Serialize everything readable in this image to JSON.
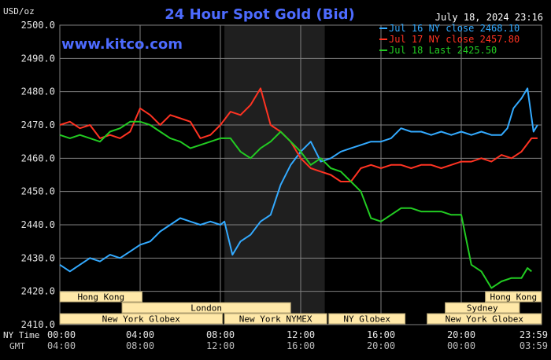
{
  "header": {
    "unit": "USD/oz",
    "title": "24 Hour Spot Gold (Bid)",
    "timestamp": "July 18, 2024 23:16",
    "watermark": "www.kitco.com"
  },
  "colors": {
    "background": "#000000",
    "grid": "#808080",
    "title": "#4d6bff",
    "watermark": "#4d6bff",
    "session_fill": "#ffe8a8",
    "session_border": "#b0a070",
    "highlight_band": "#1f1f1f"
  },
  "chart_data": {
    "type": "line",
    "title": "24 Hour Spot Gold (Bid)",
    "ylabel": "USD/oz",
    "ylim": [
      2410,
      2500
    ],
    "xlim": [
      0,
      24
    ],
    "grid": true,
    "legend": "top-right",
    "y_ticks": [
      "2500.0",
      "2490.0",
      "2480.0",
      "2470.0",
      "2460.0",
      "2450.0",
      "2440.0",
      "2430.0",
      "2420.0",
      "2410.0"
    ],
    "x_tick_labels": [
      "00:00",
      "04:00",
      "08:00",
      "12:00",
      "16:00",
      "20:00",
      "23:59"
    ],
    "gmt_tick_labels": [
      "04:00",
      "08:00",
      "12:00",
      "16:00",
      "20:00",
      "00:00",
      "03:59"
    ],
    "x_axis_labels": [
      "NY Time",
      "GMT"
    ],
    "highlight_range": [
      8.2,
      13.2
    ],
    "series": [
      {
        "name": "Jul 16 NY close 2468.10",
        "color": "#33aaff",
        "x": [
          0,
          0.5,
          1,
          1.5,
          2,
          2.5,
          3,
          3.5,
          4,
          4.5,
          5,
          5.5,
          6,
          6.5,
          7,
          7.5,
          8,
          8.2,
          8.6,
          9,
          9.5,
          10,
          10.5,
          11,
          11.5,
          12,
          12.5,
          13,
          13.5,
          14,
          14.5,
          15,
          15.5,
          16,
          16.5,
          17,
          17.5,
          18,
          18.5,
          19,
          19.5,
          20,
          20.5,
          21,
          21.5,
          22,
          22.3,
          22.6,
          23,
          23.3,
          23.6,
          23.8
        ],
        "y": [
          2428,
          2426,
          2428,
          2430,
          2429,
          2431,
          2430,
          2432,
          2434,
          2435,
          2438,
          2440,
          2442,
          2441,
          2440,
          2441,
          2440,
          2441,
          2431,
          2435,
          2437,
          2441,
          2443,
          2452,
          2458,
          2462,
          2465,
          2459,
          2460,
          2462,
          2463,
          2464,
          2465,
          2465,
          2466,
          2469,
          2468,
          2468,
          2467,
          2468,
          2467,
          2468,
          2467,
          2468,
          2467,
          2467,
          2469,
          2475,
          2478,
          2481,
          2468,
          2470
        ]
      },
      {
        "name": "Jul 17 NY close 2457.80",
        "color": "#ff3322",
        "x": [
          0,
          0.5,
          1,
          1.5,
          2,
          2.5,
          3,
          3.5,
          4,
          4.5,
          5,
          5.5,
          6,
          6.5,
          7,
          7.5,
          8,
          8.5,
          9,
          9.5,
          10,
          10.5,
          11,
          11.5,
          12,
          12.5,
          13,
          13.5,
          14,
          14.5,
          15,
          15.5,
          16,
          16.5,
          17,
          17.5,
          18,
          18.5,
          19,
          19.5,
          20,
          20.5,
          21,
          21.5,
          22,
          22.5,
          23,
          23.5,
          23.8
        ],
        "y": [
          2470,
          2471,
          2469,
          2470,
          2466,
          2467,
          2466,
          2468,
          2475,
          2473,
          2470,
          2473,
          2472,
          2471,
          2466,
          2467,
          2470,
          2474,
          2473,
          2476,
          2481,
          2470,
          2468,
          2465,
          2460,
          2457,
          2456,
          2455,
          2453,
          2453,
          2457,
          2458,
          2457,
          2458,
          2458,
          2457,
          2458,
          2458,
          2457,
          2458,
          2459,
          2459,
          2460,
          2459,
          2461,
          2460,
          2462,
          2466,
          2466
        ]
      },
      {
        "name": "Jul 18 Last 2425.50",
        "color": "#22cc22",
        "x": [
          0,
          0.5,
          1,
          1.5,
          2,
          2.5,
          3,
          3.5,
          4,
          4.5,
          5,
          5.5,
          6,
          6.5,
          7,
          7.5,
          8,
          8.5,
          9,
          9.5,
          10,
          10.5,
          11,
          11.5,
          12,
          12.5,
          13,
          13.5,
          14,
          14.5,
          15,
          15.5,
          16,
          16.5,
          17,
          17.5,
          18,
          18.5,
          19,
          19.5,
          20,
          20.5,
          21,
          21.5,
          22,
          22.5,
          23,
          23.3,
          23.5
        ],
        "y": [
          2467,
          2466,
          2467,
          2466,
          2465,
          2468,
          2469,
          2471,
          2471,
          2470,
          2468,
          2466,
          2465,
          2463,
          2464,
          2465,
          2466,
          2466,
          2462,
          2460,
          2463,
          2465,
          2468,
          2465,
          2462,
          2458,
          2460,
          2457,
          2456,
          2453,
          2450,
          2442,
          2441,
          2443,
          2445,
          2445,
          2444,
          2444,
          2444,
          2443,
          2443,
          2428,
          2426,
          2421,
          2423,
          2424,
          2424,
          2427,
          2426
        ]
      }
    ]
  },
  "sessions": [
    {
      "label": "Hong Kong",
      "start": 0,
      "end": 4.1
    },
    {
      "label": "London",
      "start": 3.1,
      "end": 11.5
    },
    {
      "label": "New York Globex",
      "start": 0,
      "end": 8.1
    },
    {
      "label": "New York NYMEX",
      "start": 8.2,
      "end": 13.3
    },
    {
      "label": "NY Globex",
      "start": 13.4,
      "end": 17.2
    },
    {
      "label": "Sydney",
      "start": 19.2,
      "end": 22.9
    },
    {
      "label": "Hong Kong",
      "start": 21.2,
      "end": 24
    },
    {
      "label": "New York Globex",
      "start": 18.3,
      "end": 24
    }
  ]
}
